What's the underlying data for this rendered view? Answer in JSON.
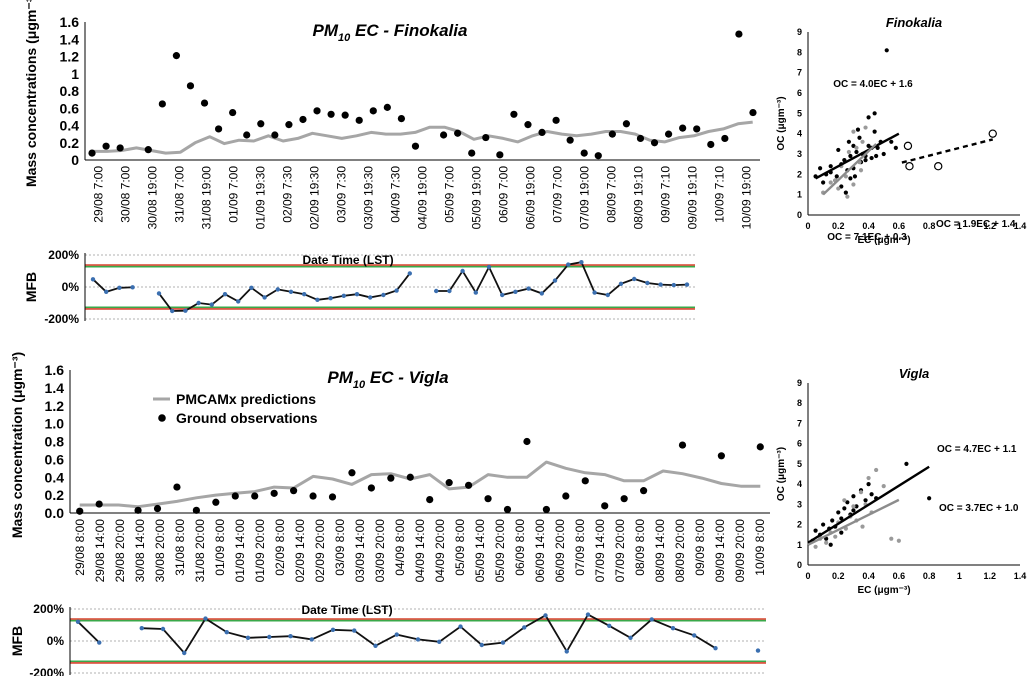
{
  "chart_data": [
    {
      "id": "ts_fin",
      "type": "line",
      "title": "PM10 EC - Finokalia",
      "title_main": "PM",
      "title_sub": "10",
      "title_rest": " EC - Finokalia",
      "ylabel": "Mass concentrations (μgm⁻³)",
      "ylim": [
        0,
        1.6
      ],
      "yticks": [
        "0",
        "0.2",
        "0.4",
        "0.6",
        "0.8",
        "1",
        "1.2",
        "1.4",
        "1.6"
      ],
      "date_labels": [
        "29/08 7:00",
        "30/08 7:00",
        "30/08 19:00",
        "31/08 7:00",
        "31/08 19:00",
        "01/09 7:00",
        "01/09 19:30",
        "02/09 7:30",
        "02/09 19:30",
        "03/09 7:30",
        "03/09 19:30",
        "04/09 7:30",
        "04/09 19:00",
        "05/09 7:00",
        "05/09 19:00",
        "06/09 7:00",
        "06/09 19:00",
        "07/09 7:00",
        "07/09 19:00",
        "08/09 7:00",
        "08/09 19:10",
        "09/09 7:10",
        "09/09 19:10",
        "10/09 7:10",
        "10/09 19:00"
      ],
      "series": [
        {
          "name": "PMCAMx predictions",
          "kind": "line",
          "color": "#a6a6a6",
          "values": [
            0.1,
            0.1,
            0.11,
            0.14,
            0.11,
            0.08,
            0.09,
            0.2,
            0.27,
            0.19,
            0.23,
            0.22,
            0.28,
            0.22,
            0.25,
            0.31,
            0.28,
            0.25,
            0.28,
            0.32,
            0.3,
            0.3,
            0.32,
            0.38,
            0.38,
            0.33,
            0.24,
            0.28,
            0.25,
            0.21,
            0.28,
            0.33,
            0.3,
            0.28,
            0.3,
            0.33,
            0.33,
            0.3,
            0.23,
            0.21,
            0.26,
            0.28,
            0.33,
            0.36,
            0.42,
            0.44
          ]
        },
        {
          "name": "Ground observations",
          "kind": "points",
          "color": "#000000",
          "values": [
            0.08,
            0.16,
            0.14,
            null,
            0.12,
            0.65,
            1.21,
            0.86,
            0.66,
            0.36,
            0.55,
            0.29,
            0.42,
            0.29,
            0.41,
            0.47,
            0.57,
            0.53,
            0.52,
            0.46,
            0.57,
            0.61,
            0.48,
            0.16,
            null,
            0.29,
            0.31,
            0.08,
            0.26,
            0.06,
            0.53,
            0.41,
            0.32,
            0.46,
            0.23,
            0.08,
            0.05,
            0.3,
            0.42,
            0.25,
            0.2,
            0.3,
            0.37,
            0.36,
            0.18,
            0.25,
            1.46,
            0.55
          ]
        }
      ]
    },
    {
      "id": "mfb_fin",
      "type": "line",
      "ylabel": "MFB",
      "xlabel": "Date Time (LST)",
      "ylim": [
        -200,
        200
      ],
      "yticks": [
        "200%",
        "0%",
        "-200%"
      ],
      "reference_lines": [
        {
          "value": 137,
          "color": "#d9442f"
        },
        {
          "value": 127,
          "color": "#3aa84a"
        },
        {
          "value": -127,
          "color": "#3aa84a"
        },
        {
          "value": -137,
          "color": "#d9442f"
        }
      ],
      "series": [
        {
          "name": "MFB",
          "color": "#111111",
          "values": [
            48,
            -30,
            -5,
            -2,
            null,
            -40,
            -150,
            -148,
            -100,
            -110,
            -45,
            -90,
            -5,
            -65,
            -15,
            -30,
            -45,
            -80,
            -70,
            -55,
            -45,
            -65,
            -50,
            -22,
            85,
            null,
            -25,
            -25,
            100,
            -35,
            125,
            -50,
            -30,
            -10,
            -40,
            40,
            140,
            155,
            -35,
            -50,
            20,
            50,
            25,
            15,
            12,
            15
          ]
        }
      ]
    },
    {
      "id": "sc_fin",
      "type": "scatter",
      "title": "Finokalia",
      "xlabel": "EC (μgm⁻³)",
      "ylabel": "OC (μgm⁻³)",
      "xlim": [
        0,
        1.4
      ],
      "ylim": [
        0,
        9
      ],
      "xticks": [
        "0",
        "0.2",
        "0.4",
        "0.6",
        "0.8",
        "1",
        "1.2",
        "1.4"
      ],
      "yticks": [
        "0",
        "1",
        "2",
        "3",
        "4",
        "5",
        "6",
        "7",
        "8",
        "9"
      ],
      "series": [
        {
          "name": "black",
          "kind": "filled",
          "color": "#000000",
          "x": [
            0.05,
            0.08,
            0.1,
            0.12,
            0.15,
            0.18,
            0.2,
            0.22,
            0.24,
            0.26,
            0.28,
            0.3,
            0.3,
            0.32,
            0.34,
            0.35,
            0.36,
            0.38,
            0.4,
            0.4,
            0.42,
            0.42,
            0.44,
            0.45,
            0.46,
            0.48,
            0.5,
            0.52,
            0.55,
            0.58,
            0.25,
            0.28,
            0.33,
            0.22,
            0.19,
            0.27,
            0.38,
            0.44,
            0.15,
            0.31
          ],
          "y": [
            1.9,
            2.3,
            1.6,
            2.0,
            2.4,
            1.7,
            3.2,
            1.4,
            2.7,
            2.2,
            1.8,
            3.4,
            2.3,
            3.1,
            3.8,
            2.6,
            3.0,
            2.7,
            4.8,
            3.4,
            2.8,
            3.3,
            5.0,
            2.9,
            3.3,
            3.6,
            3.0,
            8.1,
            3.6,
            3.3,
            1.1,
            2.9,
            4.2,
            2.5,
            1.9,
            3.6,
            2.9,
            4.1,
            2.1,
            1.9
          ]
        },
        {
          "name": "grey",
          "kind": "filled",
          "color": "#9a9a9a",
          "x": [
            0.1,
            0.15,
            0.2,
            0.22,
            0.25,
            0.27,
            0.3,
            0.32,
            0.34,
            0.36,
            0.38,
            0.26,
            0.18,
            0.3,
            0.35
          ],
          "y": [
            1.1,
            1.6,
            1.3,
            2.4,
            1.9,
            3.1,
            4.1,
            3.3,
            2.6,
            3.6,
            4.3,
            0.9,
            1.7,
            1.5,
            2.2
          ]
        },
        {
          "name": "open",
          "kind": "open",
          "color": "#000000",
          "x": [
            0.66,
            0.67,
            0.86,
            1.22
          ],
          "y": [
            3.4,
            2.4,
            2.4,
            4.0
          ]
        }
      ],
      "fits": [
        {
          "label": "OC = 4.0EC + 1.6",
          "slope": 4.0,
          "intercept": 1.6,
          "x": [
            0.05,
            0.6
          ],
          "color": "#000000",
          "dashed": false,
          "label_color": "#000000"
        },
        {
          "label": "OC = 7.1EC + 0.3",
          "slope": 7.1,
          "intercept": 0.3,
          "x": [
            0.1,
            0.45
          ],
          "color": "#8c8c8c",
          "dashed": false,
          "label_color": "#8c8c8c"
        },
        {
          "label": "OC = 1.9EC + 1.4",
          "slope": 1.9,
          "intercept": 1.4,
          "x": [
            0.62,
            1.22
          ],
          "color": "#000000",
          "dashed": true,
          "label_color": "#000000"
        }
      ]
    },
    {
      "id": "ts_vig",
      "type": "line",
      "title": "PM10 EC - Vigla",
      "title_main": "PM",
      "title_sub": "10",
      "title_rest": " EC - Vigla",
      "ylabel": "Mass concentration (μgm⁻³)",
      "ylim": [
        0,
        1.6
      ],
      "yticks": [
        "0.0",
        "0.2",
        "0.4",
        "0.6",
        "0.8",
        "1.0",
        "1.2",
        "1.4",
        "1.6"
      ],
      "date_labels": [
        "29/08 8:00",
        "29/08 14:00",
        "29/08 20:00",
        "30/08 14:00",
        "30/08 20:00",
        "31/08 8:00",
        "31/08 20:00",
        "01/09 8:00",
        "01/09 14:00",
        "01/09 20:00",
        "02/09 8:00",
        "02/09 14:00",
        "02/09 20:00",
        "03/09 8:00",
        "03/09 14:00",
        "03/09 20:00",
        "04/09 8:00",
        "04/09 14:00",
        "04/09 20:00",
        "05/09 8:00",
        "05/09 14:00",
        "05/09 20:00",
        "06/09 8:00",
        "06/09 14:00",
        "06/09 20:00",
        "07/09 8:00",
        "07/09 14:00",
        "07/09 20:00",
        "08/09 8:00",
        "08/09 14:00",
        "08/09 20:00",
        "09/09 8:00",
        "09/09 14:00",
        "09/09 20:00",
        "10/09 8:00"
      ],
      "legend": [
        {
          "name": "PMCAMx predictions",
          "kind": "line",
          "color": "#a6a6a6"
        },
        {
          "name": "Ground observations",
          "kind": "point",
          "color": "#000000"
        }
      ],
      "series": [
        {
          "name": "PMCAMx predictions",
          "kind": "line",
          "color": "#a6a6a6",
          "values": [
            0.09,
            0.09,
            0.09,
            0.07,
            0.1,
            0.13,
            0.17,
            0.2,
            0.22,
            0.24,
            0.29,
            0.28,
            0.41,
            0.38,
            0.32,
            0.43,
            0.44,
            0.38,
            0.43,
            0.27,
            0.29,
            0.43,
            0.4,
            0.4,
            0.57,
            0.5,
            0.45,
            0.43,
            0.36,
            0.36,
            0.47,
            0.44,
            0.39,
            0.33,
            0.3,
            0.3
          ]
        },
        {
          "name": "Ground observations",
          "kind": "points",
          "color": "#000000",
          "values": [
            0.02,
            0.1,
            null,
            0.03,
            0.05,
            0.29,
            0.03,
            0.12,
            0.19,
            0.19,
            0.22,
            0.25,
            0.19,
            0.18,
            0.45,
            0.28,
            0.39,
            0.4,
            0.15,
            0.34,
            0.31,
            0.16,
            0.04,
            0.8,
            0.04,
            0.19,
            0.36,
            0.08,
            0.16,
            0.25,
            null,
            0.76,
            null,
            0.64,
            null,
            0.74
          ]
        }
      ]
    },
    {
      "id": "mfb_vig",
      "type": "line",
      "ylabel": "MFB",
      "xlabel": "Date Time (LST)",
      "ylim": [
        -200,
        200
      ],
      "yticks": [
        "200%",
        "0%",
        "-200%"
      ],
      "reference_lines": [
        {
          "value": 137,
          "color": "#d9442f"
        },
        {
          "value": 127,
          "color": "#3aa84a"
        },
        {
          "value": -127,
          "color": "#3aa84a"
        },
        {
          "value": -137,
          "color": "#d9442f"
        }
      ],
      "series": [
        {
          "name": "MFB",
          "color": "#111111",
          "values": [
            120,
            -10,
            null,
            80,
            75,
            -75,
            140,
            55,
            20,
            25,
            30,
            10,
            70,
            65,
            -30,
            40,
            10,
            -5,
            90,
            -25,
            -10,
            85,
            160,
            -65,
            165,
            95,
            20,
            135,
            80,
            35,
            -45,
            null,
            -60
          ]
        }
      ]
    },
    {
      "id": "sc_vig",
      "type": "scatter",
      "title": "Vigla",
      "xlabel": "EC (μgm⁻³)",
      "ylabel": "OC (μgm⁻³)",
      "xlim": [
        0,
        1.4
      ],
      "ylim": [
        0,
        9
      ],
      "xticks": [
        "0",
        "0.2",
        "0.4",
        "0.6",
        "0.8",
        "1",
        "1.2",
        "1.4"
      ],
      "yticks": [
        "0",
        "1",
        "2",
        "3",
        "4",
        "5",
        "6",
        "7",
        "8",
        "9"
      ],
      "series": [
        {
          "name": "black",
          "kind": "filled",
          "color": "#000000",
          "x": [
            0.03,
            0.05,
            0.08,
            0.1,
            0.12,
            0.14,
            0.16,
            0.18,
            0.2,
            0.22,
            0.24,
            0.26,
            0.28,
            0.3,
            0.32,
            0.35,
            0.38,
            0.4,
            0.42,
            0.45,
            0.65,
            0.8,
            0.22,
            0.3,
            0.15
          ],
          "y": [
            1.2,
            1.7,
            1.5,
            2.0,
            1.3,
            1.8,
            2.2,
            1.9,
            2.6,
            2.3,
            2.8,
            3.1,
            2.5,
            3.4,
            2.9,
            3.7,
            3.2,
            4.0,
            3.5,
            3.3,
            5.0,
            3.3,
            1.6,
            2.7,
            1.0
          ]
        },
        {
          "name": "grey",
          "kind": "filled",
          "color": "#9a9a9a",
          "x": [
            0.05,
            0.08,
            0.12,
            0.15,
            0.18,
            0.2,
            0.25,
            0.28,
            0.3,
            0.32,
            0.35,
            0.38,
            0.4,
            0.42,
            0.45,
            0.5,
            0.55,
            0.6,
            0.24,
            0.36
          ],
          "y": [
            0.9,
            1.3,
            1.1,
            1.6,
            1.4,
            2.1,
            1.8,
            2.4,
            2.9,
            2.2,
            3.6,
            3.0,
            4.3,
            2.6,
            4.7,
            3.9,
            1.3,
            1.2,
            3.2,
            1.9
          ]
        }
      ],
      "fits": [
        {
          "label": "OC = 4.7EC + 1.1",
          "slope": 4.7,
          "intercept": 1.1,
          "x": [
            0.0,
            0.8
          ],
          "color": "#000000",
          "dashed": false,
          "label_color": "#000000"
        },
        {
          "label": "OC = 3.7EC + 1.0",
          "slope": 3.7,
          "intercept": 1.0,
          "x": [
            0.0,
            0.6
          ],
          "color": "#8c8c8c",
          "dashed": false,
          "label_color": "#8c8c8c"
        }
      ]
    }
  ]
}
